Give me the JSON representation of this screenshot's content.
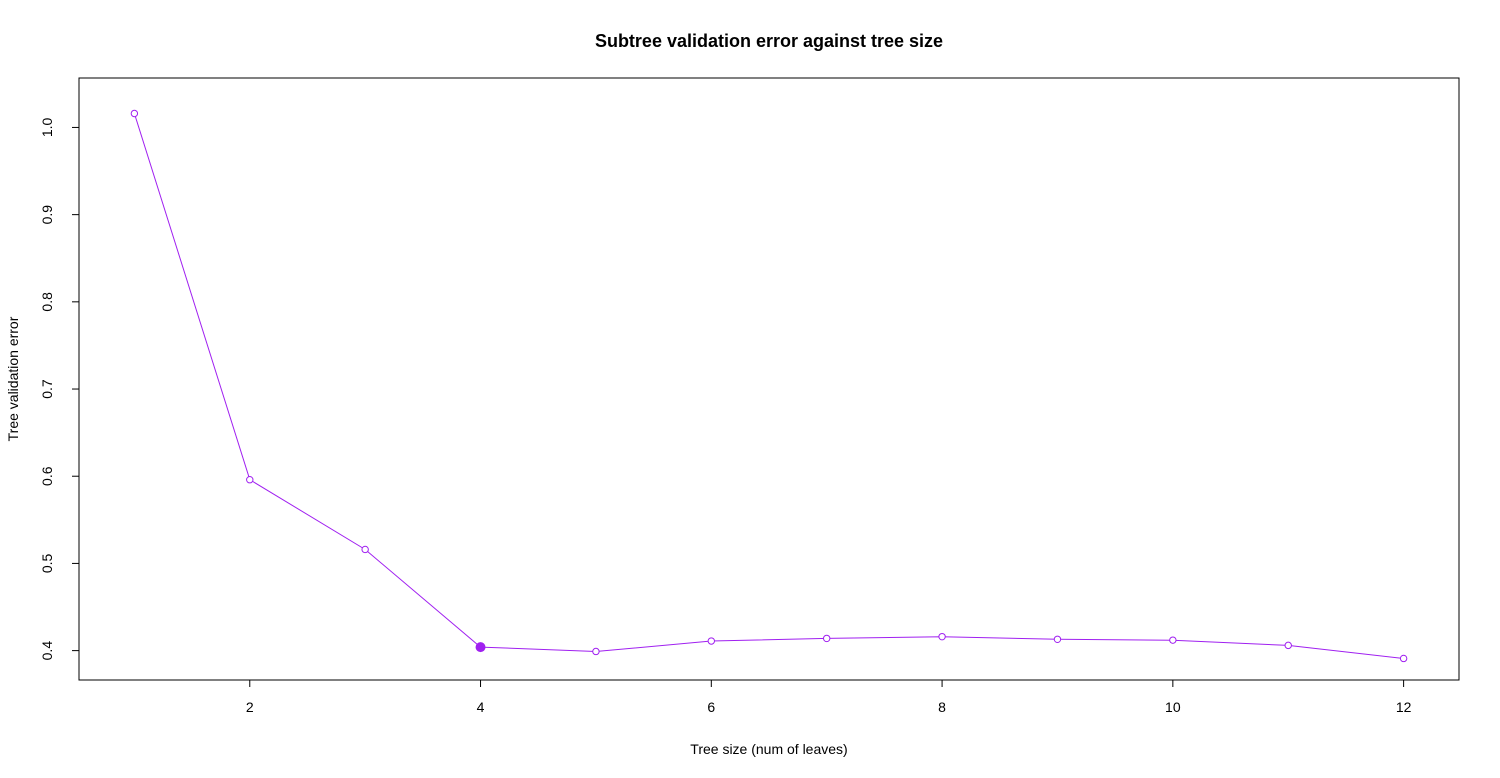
{
  "chart_data": {
    "type": "line",
    "title": "Subtree validation error against tree size",
    "xlabel": "Tree size (num of leaves)",
    "ylabel": "Tree validation error",
    "x_ticks": [
      2,
      4,
      6,
      8,
      10,
      12
    ],
    "y_ticks": [
      0.4,
      0.5,
      0.6,
      0.7,
      0.8,
      0.9,
      1.0
    ],
    "y_tick_labels": [
      "0.4",
      "0.5",
      "0.6",
      "0.7",
      "0.8",
      "0.9",
      "1.0"
    ],
    "xlim": [
      0.52,
      12.48
    ],
    "ylim": [
      0.3663,
      1.0567
    ],
    "grid": false,
    "series": [
      {
        "x": [
          1,
          2,
          3,
          4,
          5,
          6,
          7,
          8,
          9,
          10,
          11,
          12
        ],
        "values": [
          1.016,
          0.596,
          0.516,
          0.404,
          0.399,
          0.411,
          0.414,
          0.416,
          0.413,
          0.412,
          0.406,
          0.391
        ],
        "color": "#a020f0"
      }
    ],
    "highlight": {
      "x": 4,
      "y": 0.404,
      "color": "#a020f0"
    }
  }
}
